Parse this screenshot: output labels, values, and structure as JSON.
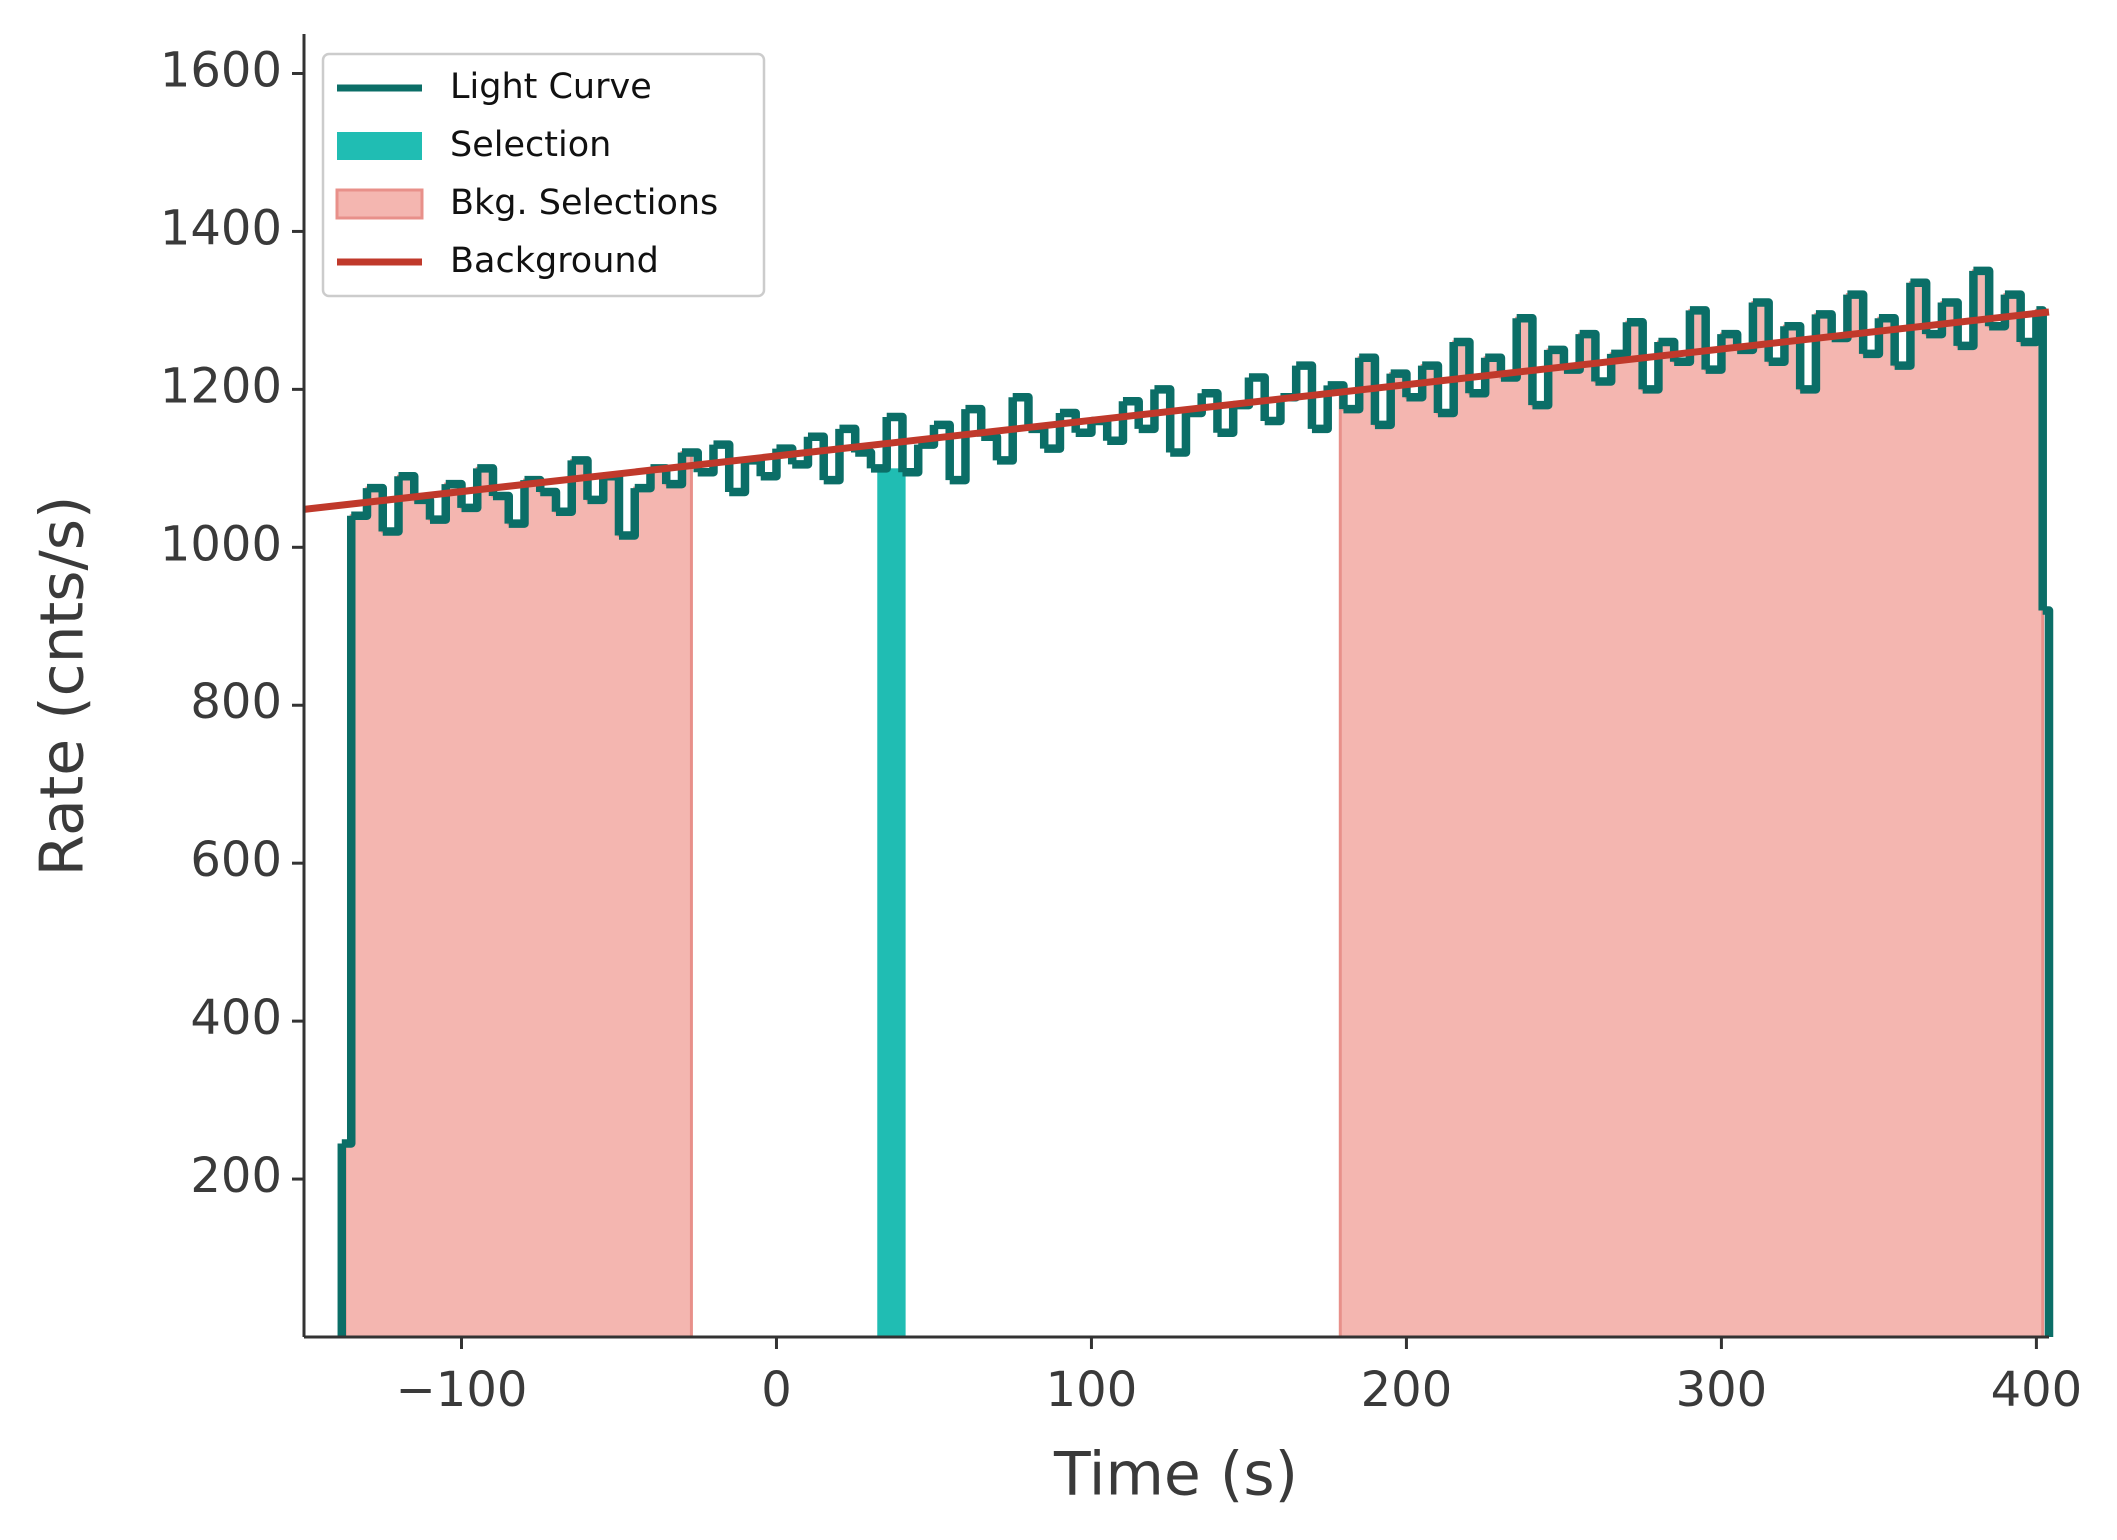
{
  "chart_data": {
    "type": "step",
    "x_label": "Time (s)",
    "y_label": "Rate (cnts/s)",
    "xlim": [
      -150,
      404
    ],
    "ylim": [
      0,
      1650
    ],
    "xticks": [
      {
        "value": -100,
        "label": "−100"
      },
      0,
      100,
      200,
      300,
      400
    ],
    "yticks": [
      200,
      400,
      600,
      800,
      1000,
      1200,
      1400,
      1600
    ],
    "legend": "upper left",
    "series": [
      {
        "name": "Light Curve",
        "color": "#0b6e67",
        "x": [
          -138,
          -135,
          -130,
          -125,
          -120,
          -115,
          -110,
          -105,
          -100,
          -95,
          -90,
          -85,
          -80,
          -75,
          -70,
          -65,
          -60,
          -55,
          -50,
          -45,
          -40,
          -35,
          -30,
          -25,
          -20,
          -15,
          -10,
          -5,
          0,
          5,
          10,
          15,
          20,
          25,
          30,
          35,
          40,
          45,
          50,
          55,
          60,
          65,
          70,
          75,
          80,
          85,
          90,
          95,
          100,
          105,
          110,
          115,
          120,
          125,
          130,
          135,
          140,
          145,
          150,
          155,
          160,
          165,
          170,
          175,
          180,
          185,
          190,
          195,
          200,
          205,
          210,
          215,
          220,
          225,
          230,
          235,
          240,
          245,
          250,
          255,
          260,
          265,
          270,
          275,
          280,
          285,
          290,
          295,
          300,
          305,
          310,
          315,
          320,
          325,
          330,
          335,
          340,
          345,
          350,
          355,
          360,
          365,
          370,
          375,
          380,
          385,
          390,
          395,
          400,
          402
        ],
        "values": [
          245,
          1040,
          1075,
          1020,
          1090,
          1060,
          1035,
          1080,
          1050,
          1100,
          1065,
          1030,
          1085,
          1070,
          1045,
          1110,
          1060,
          1090,
          1015,
          1075,
          1100,
          1080,
          1120,
          1095,
          1130,
          1070,
          1110,
          1090,
          1125,
          1105,
          1140,
          1085,
          1150,
          1120,
          1100,
          1165,
          1095,
          1130,
          1155,
          1085,
          1175,
          1140,
          1110,
          1190,
          1150,
          1125,
          1170,
          1145,
          1160,
          1135,
          1185,
          1150,
          1200,
          1120,
          1170,
          1195,
          1145,
          1180,
          1215,
          1160,
          1190,
          1230,
          1150,
          1205,
          1175,
          1240,
          1155,
          1220,
          1190,
          1230,
          1170,
          1260,
          1195,
          1240,
          1215,
          1290,
          1180,
          1250,
          1225,
          1270,
          1210,
          1245,
          1285,
          1200,
          1260,
          1235,
          1300,
          1225,
          1270,
          1250,
          1310,
          1235,
          1280,
          1200,
          1295,
          1265,
          1320,
          1245,
          1290,
          1230,
          1335,
          1270,
          1310,
          1255,
          1350,
          1280,
          1320,
          1260,
          1300,
          920
        ]
      },
      {
        "name": "Background",
        "color": "#c0392b",
        "x": [
          -150,
          404
        ],
        "values": [
          1048,
          1298
        ]
      }
    ],
    "selection": {
      "name": "Selection",
      "color": "#20bdb3",
      "range": [
        32,
        41
      ]
    },
    "bkg_selections": {
      "name": "Bkg. Selections",
      "color": "#f4b6b0",
      "edge": "#e8908a",
      "ranges": [
        [
          -137,
          -27
        ],
        [
          179,
          402
        ]
      ]
    }
  }
}
